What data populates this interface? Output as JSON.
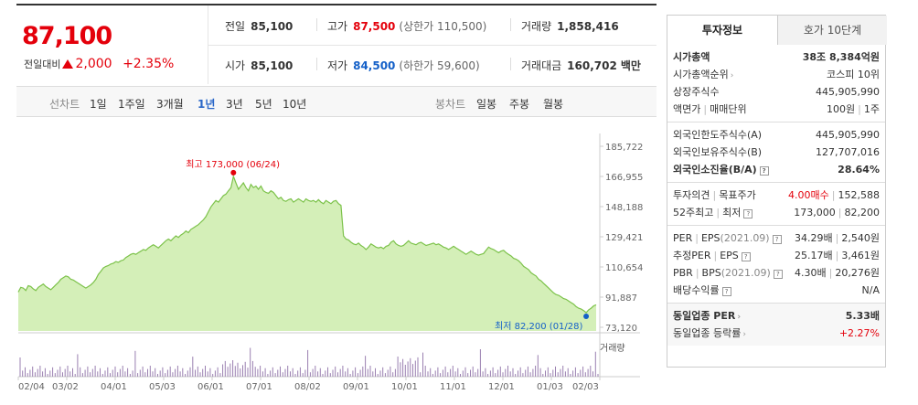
{
  "price": {
    "current": "87,100",
    "change_label": "전일대비",
    "change_value": "2,000",
    "change_pct": "+2.35%"
  },
  "info": {
    "prev_close_label": "전일",
    "prev_close": "85,100",
    "high_label": "고가",
    "high": "87,500",
    "upper_limit": "(상한가 110,500)",
    "volume_label": "거래량",
    "volume": "1,858,416",
    "open_label": "시가",
    "open": "85,100",
    "low_label": "저가",
    "low": "84,500",
    "lower_limit": "(하한가 59,600)",
    "amount_label": "거래대금",
    "amount": "160,702",
    "amount_unit": "백만"
  },
  "periods": {
    "line_label": "선차트",
    "items": [
      "1일",
      "1주일",
      "3개월",
      "1년",
      "3년",
      "5년",
      "10년"
    ],
    "active": "1년",
    "candle_label": "봉차트",
    "candle_items": [
      "일봉",
      "주봉",
      "월봉"
    ]
  },
  "chart_data": {
    "type": "area",
    "y_ticks": [
      "185,722",
      "166,955",
      "148,188",
      "129,421",
      "110,654",
      "91,887",
      "73,120"
    ],
    "ylim": [
      73120,
      185722
    ],
    "x_ticks": [
      "02/04",
      "03/02",
      "04/01",
      "05/03",
      "06/01",
      "07/01",
      "08/02",
      "09/01",
      "10/01",
      "11/01",
      "12/01",
      "01/03",
      "02/03"
    ],
    "high_annotation": "최고 173,000 (06/24)",
    "low_annotation": "최저 82,200 (01/28)",
    "volume_label": "거래량",
    "line_color": "#7cc24a",
    "fill_color": "#c5eaa0",
    "high_dot_color": "#e4000b",
    "low_dot_color": "#1460c8",
    "series": [
      {
        "values": [
          95000,
          98000,
          97500,
          96000,
          99000,
          98500,
          97000,
          96000,
          98000,
          99000,
          100000,
          98500,
          97500,
          96500,
          98000,
          99500,
          101000,
          103000,
          104000,
          105000,
          104500,
          103000,
          102500,
          101500,
          100500,
          99500,
          98500,
          97500,
          98500,
          99500,
          101000,
          103000,
          106000,
          108000,
          110000,
          111000,
          111500,
          112500,
          113000,
          114000,
          113500,
          114500,
          115000,
          116500,
          117500,
          118500,
          119000,
          118500,
          119500,
          120500,
          121500,
          121000,
          122500,
          123500,
          124500,
          123500,
          122500,
          124000,
          125500,
          127000,
          128000,
          127000,
          128500,
          130000,
          129000,
          130500,
          131500,
          133000,
          132000,
          134000,
          135000,
          136000,
          137000,
          138500,
          140000,
          142000,
          145000,
          148000,
          150000,
          152000,
          151000,
          153000,
          155000,
          156000,
          158000,
          160000,
          167000,
          163000,
          159000,
          161000,
          163000,
          160000,
          158000,
          162000,
          160000,
          161000,
          159000,
          161000,
          158000,
          157000,
          156500,
          158000,
          157000,
          155000,
          153000,
          154000,
          152000,
          151500,
          152500,
          153000,
          151000,
          152000,
          153000,
          152000,
          151000,
          153000,
          152000,
          151500,
          152000,
          151000,
          152500,
          151000,
          150000,
          152000,
          151000,
          150000,
          151500,
          152000,
          150000,
          149000,
          130000,
          128000,
          127500,
          126000,
          125000,
          124500,
          125500,
          124000,
          123000,
          121500,
          123000,
          125000,
          124000,
          123000,
          122500,
          123000,
          122000,
          123500,
          124000,
          126000,
          127000,
          125000,
          124000,
          123500,
          124000,
          125500,
          127000,
          125500,
          125000,
          124500,
          125500,
          126000,
          125000,
          124000,
          124500,
          125000,
          125500,
          124500,
          125000,
          124000,
          123000,
          122500,
          121500,
          122500,
          123500,
          122500,
          121500,
          120500,
          119500,
          118500,
          119500,
          120500,
          119500,
          118500,
          118000,
          118500,
          119000,
          121000,
          123000,
          122000,
          121500,
          120500,
          119500,
          120500,
          121000,
          119500,
          118500,
          117500,
          116000,
          115500,
          114500,
          113000,
          111000,
          110000,
          109000,
          107000,
          106000,
          105000,
          103000,
          102000,
          100500,
          99000,
          97500,
          96000,
          94500,
          93500,
          93000,
          92000,
          91000,
          90500,
          89500,
          88500,
          87500,
          86000,
          85000,
          84500,
          83500,
          82200,
          84000,
          85000,
          86500,
          87100
        ]
      }
    ]
  },
  "panel": {
    "tab_invest": "투자정보",
    "tab_quote": "호가 10단계",
    "market_cap_label": "시가총액",
    "market_cap": "38조 8,384억원",
    "rank_label": "시가총액순위",
    "rank": "코스피 10위",
    "shares_label": "상장주식수",
    "shares": "445,905,990",
    "par_label": "액면가",
    "unit_label": "매매단위",
    "par": "100원",
    "unit": "1주",
    "foreign_limit_label": "외국인한도주식수(A)",
    "foreign_limit": "445,905,990",
    "foreign_hold_label": "외국인보유주식수(B)",
    "foreign_hold": "127,707,016",
    "foreign_ratio_label": "외국인소진율(B/A)",
    "foreign_ratio": "28.64%",
    "opinion_label": "투자의견",
    "target_label": "목표주가",
    "opinion": "4.00매수",
    "target": "152,588",
    "w52_label": "52주최고",
    "w52_low_label": "최저",
    "w52_high": "173,000",
    "w52_low": "82,200",
    "per_label": "PER",
    "eps_label": "EPS",
    "eps_year": "(2021.09)",
    "per": "34.29배",
    "eps": "2,540원",
    "est_per_label": "추정PER",
    "est_eps_label": "EPS",
    "est_per": "25.17배",
    "est_eps": "3,461원",
    "pbr_label": "PBR",
    "bps_label": "BPS",
    "bps_year": "(2021.09)",
    "pbr": "4.30배",
    "bps": "20,276원",
    "div_label": "배당수익률",
    "div": "N/A",
    "ind_per_label": "동일업종 PER",
    "ind_per": "5.33배",
    "ind_chg_label": "동일업종 등락률",
    "ind_chg": "+2.27%"
  }
}
